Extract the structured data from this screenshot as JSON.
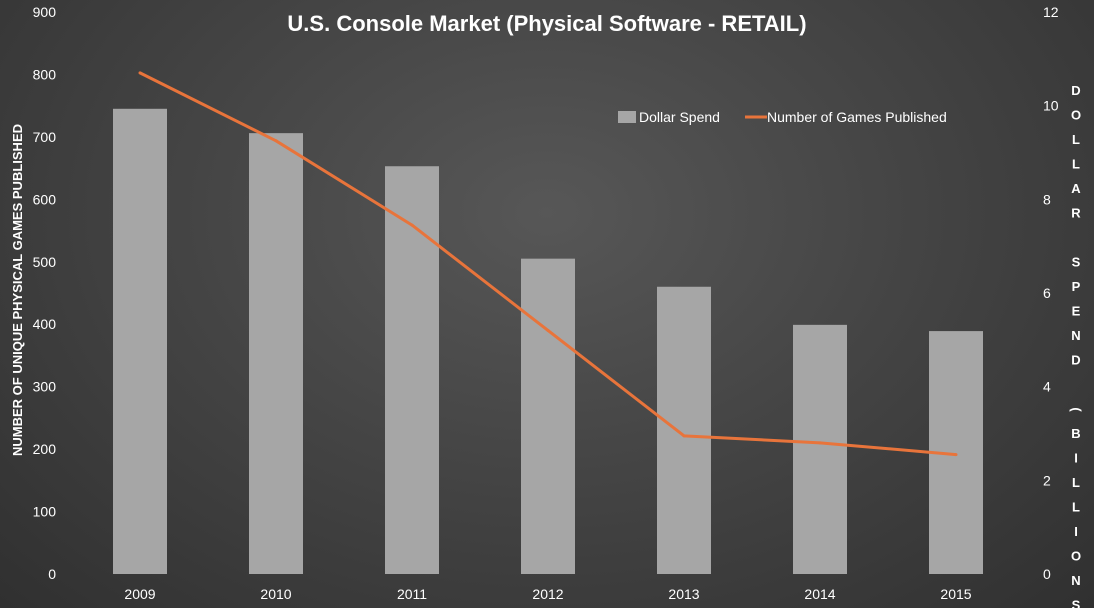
{
  "chart_data": {
    "type": "bar+line",
    "title": "U.S. Console Market (Physical Software - RETAIL)",
    "categories": [
      "2009",
      "2010",
      "2011",
      "2012",
      "2013",
      "2014",
      "2015"
    ],
    "series": [
      {
        "name": "Dollar Spend",
        "type": "bar",
        "axis": "left",
        "values": [
          745,
          706,
          653,
          505,
          460,
          399,
          389
        ],
        "color": "#a6a6a6"
      },
      {
        "name": "Number of Games Published",
        "type": "line",
        "axis": "right",
        "values": [
          10.7,
          9.25,
          7.45,
          5.2,
          2.95,
          2.8,
          2.55
        ],
        "color": "#e8743b"
      }
    ],
    "ylabel": "NUMBER OF UNIQUE PHYSICAL GAMES PUBLISHED",
    "ylabel_right": "DOLLAR SPEND (BILLIONS)",
    "ylim": [
      0,
      900
    ],
    "yticks": [
      "0",
      "100",
      "200",
      "300",
      "400",
      "500",
      "600",
      "700",
      "800",
      "900"
    ],
    "ylim_right": [
      0,
      12
    ],
    "yticks_right": [
      "0",
      "2",
      "4",
      "6",
      "8",
      "10",
      "12"
    ],
    "grid": false,
    "legend": "top-right"
  }
}
